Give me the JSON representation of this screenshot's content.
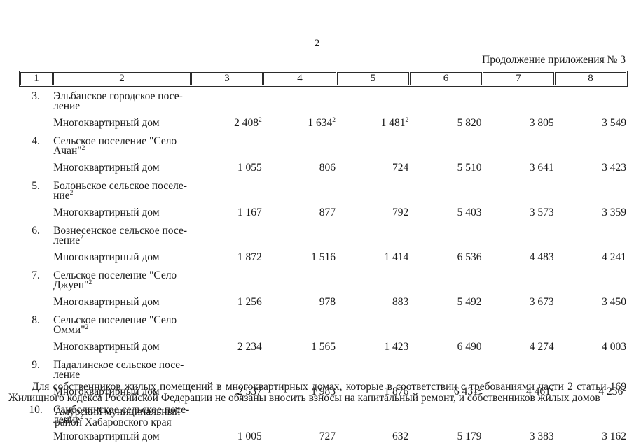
{
  "page": {
    "page_number": "2",
    "continuation_note": "Продолжение приложения № 3"
  },
  "colors": {
    "background": "#ffffff",
    "text": "#1a1a1a",
    "border": "#2b2b2b"
  },
  "table": {
    "column_numbers": [
      "1",
      "2",
      "3",
      "4",
      "5",
      "6",
      "7",
      "8"
    ],
    "rows": [
      {
        "num": "3.",
        "name_lines": [
          "Эльбанское городское посе-",
          "ление"
        ],
        "name_sup": "",
        "building_label": "Многоквартирный дом",
        "values": [
          {
            "v": "2 408",
            "sup": "2"
          },
          {
            "v": "1 634",
            "sup": "2"
          },
          {
            "v": "1 481",
            "sup": "2"
          },
          {
            "v": "5 820",
            "sup": ""
          },
          {
            "v": "3 805",
            "sup": ""
          },
          {
            "v": "3 549",
            "sup": ""
          }
        ]
      },
      {
        "num": "4.",
        "name_lines": [
          "Сельское поселение \"Село",
          "Ачан\""
        ],
        "name_sup": "2",
        "building_label": "Многоквартирный дом",
        "values": [
          {
            "v": "1 055",
            "sup": ""
          },
          {
            "v": "806",
            "sup": ""
          },
          {
            "v": "724",
            "sup": ""
          },
          {
            "v": "5 510",
            "sup": ""
          },
          {
            "v": "3 641",
            "sup": ""
          },
          {
            "v": "3 423",
            "sup": ""
          }
        ]
      },
      {
        "num": "5.",
        "name_lines": [
          "Болоньское сельское поселе-",
          "ние"
        ],
        "name_sup": "2",
        "building_label": "Многоквартирный дом",
        "values": [
          {
            "v": "1 167",
            "sup": ""
          },
          {
            "v": "877",
            "sup": ""
          },
          {
            "v": "792",
            "sup": ""
          },
          {
            "v": "5 403",
            "sup": ""
          },
          {
            "v": "3 573",
            "sup": ""
          },
          {
            "v": "3 359",
            "sup": ""
          }
        ]
      },
      {
        "num": "6.",
        "name_lines": [
          "Вознесенское сельское посе-",
          "ление"
        ],
        "name_sup": "2",
        "building_label": "Многоквартирный дом",
        "values": [
          {
            "v": "1 872",
            "sup": ""
          },
          {
            "v": "1 516",
            "sup": ""
          },
          {
            "v": "1 414",
            "sup": ""
          },
          {
            "v": "6 536",
            "sup": ""
          },
          {
            "v": "4 483",
            "sup": ""
          },
          {
            "v": "4 241",
            "sup": ""
          }
        ]
      },
      {
        "num": "7.",
        "name_lines": [
          "Сельское поселение \"Село",
          "Джуен\""
        ],
        "name_sup": "2",
        "building_label": "Многоквартирный дом",
        "values": [
          {
            "v": "1 256",
            "sup": ""
          },
          {
            "v": "978",
            "sup": ""
          },
          {
            "v": "883",
            "sup": ""
          },
          {
            "v": "5 492",
            "sup": ""
          },
          {
            "v": "3 673",
            "sup": ""
          },
          {
            "v": "3 450",
            "sup": ""
          }
        ]
      },
      {
        "num": "8.",
        "name_lines": [
          "Сельское поселение \"Село",
          "Омми\""
        ],
        "name_sup": "2",
        "building_label": "Многоквартирный дом",
        "values": [
          {
            "v": "2 234",
            "sup": ""
          },
          {
            "v": "1 565",
            "sup": ""
          },
          {
            "v": "1 423",
            "sup": ""
          },
          {
            "v": "6 490",
            "sup": ""
          },
          {
            "v": "4 274",
            "sup": ""
          },
          {
            "v": "4 003",
            "sup": ""
          }
        ]
      },
      {
        "num": "9.",
        "name_lines": [
          "Падалинское сельское посе-",
          "ление"
        ],
        "name_sup": "",
        "building_label": "Многоквартирный дом",
        "values": [
          {
            "v": "2 537",
            "sup": ""
          },
          {
            "v": "1 983",
            "sup": ""
          },
          {
            "v": "1 876",
            "sup": ""
          },
          {
            "v": "6 431",
            "sup": "2"
          },
          {
            "v": "4 461",
            "sup": "2"
          },
          {
            "v": "4 236",
            "sup": "2"
          }
        ]
      },
      {
        "num": "10.",
        "name_lines": [
          "Санболинское сельское посе-",
          "ление"
        ],
        "name_sup": "2",
        "building_label": "Многоквартирный дом",
        "values": [
          {
            "v": "1 005",
            "sup": ""
          },
          {
            "v": "727",
            "sup": ""
          },
          {
            "v": "632",
            "sup": ""
          },
          {
            "v": "5 179",
            "sup": ""
          },
          {
            "v": "3 383",
            "sup": ""
          },
          {
            "v": "3 162",
            "sup": ""
          }
        ]
      }
    ]
  },
  "footer": {
    "paragraph": "Для собственников жилых помещений в многоквартирных домах, которые в соответствии с требованиями части 2 статьи 169 Жилищного кодекса Российской Федерации не обязаны вносить взносы на капитальный ремонт, и собственников жилых домов",
    "district_lines": [
      "Амурский муниципальный",
      "район Хабаровского края"
    ]
  }
}
